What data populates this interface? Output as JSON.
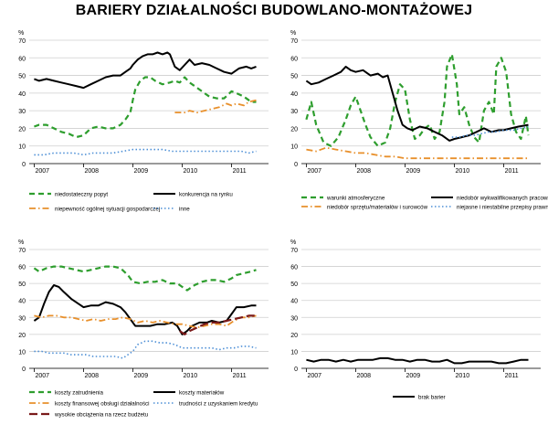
{
  "title": "BARIERY DZIAŁALNOŚCI BUDOWLANO-MONTAŻOWEJ",
  "chart_data": [
    {
      "type": "line",
      "unit": "%",
      "ylim": [
        0,
        70
      ],
      "yticks": [
        0,
        10,
        20,
        30,
        40,
        50,
        60,
        70
      ],
      "xlim": [
        2006.9,
        2011.75
      ],
      "year_labels": [
        "2007",
        "2008",
        "2009",
        "2010",
        "2011"
      ],
      "grid": true,
      "series": [
        {
          "name": "niedostateczny popyt",
          "color": "#2e9e2e",
          "style": "dashed",
          "x": [
            2007.0,
            2007.1,
            2007.25,
            2007.4,
            2007.55,
            2007.7,
            2007.85,
            2008.0,
            2008.15,
            2008.3,
            2008.45,
            2008.6,
            2008.75,
            2008.85,
            2008.95,
            2009.0,
            2009.05,
            2009.15,
            2009.25,
            2009.35,
            2009.45,
            2009.6,
            2009.75,
            2009.85,
            2009.95,
            2010.05,
            2010.15,
            2010.25,
            2010.4,
            2010.55,
            2010.7,
            2010.85,
            2011.0,
            2011.1,
            2011.25,
            2011.4,
            2011.5
          ],
          "y": [
            21,
            22,
            22,
            20,
            18,
            17,
            15,
            16,
            20,
            21,
            20,
            20,
            22,
            25,
            29,
            36,
            42,
            47,
            49,
            49,
            47,
            45,
            46,
            47,
            46,
            49,
            46,
            44,
            41,
            38,
            37,
            37,
            41,
            40,
            38,
            35,
            35
          ]
        },
        {
          "name": "konkurencja na rynku",
          "color": "#000000",
          "style": "solid",
          "x": [
            2007.0,
            2007.1,
            2007.25,
            2007.4,
            2007.55,
            2007.7,
            2007.85,
            2008.0,
            2008.15,
            2008.3,
            2008.45,
            2008.6,
            2008.75,
            2008.85,
            2008.95,
            2009.0,
            2009.1,
            2009.2,
            2009.3,
            2009.4,
            2009.5,
            2009.6,
            2009.7,
            2009.75,
            2009.85,
            2009.95,
            2010.05,
            2010.15,
            2010.25,
            2010.4,
            2010.55,
            2010.7,
            2010.85,
            2011.0,
            2011.15,
            2011.3,
            2011.4,
            2011.5
          ],
          "y": [
            48,
            47,
            48,
            47,
            46,
            45,
            44,
            43,
            45,
            47,
            49,
            50,
            50,
            52,
            54,
            56,
            59,
            61,
            62,
            62,
            63,
            62,
            63,
            62,
            55,
            53,
            56,
            59,
            56,
            57,
            56,
            54,
            52,
            51,
            54,
            55,
            54,
            55
          ]
        },
        {
          "name": "niepewność ogólnej sytuacji gospodarczej",
          "color": "#e8902c",
          "style": "dashdot",
          "x": [
            2009.85,
            2009.95,
            2010.05,
            2010.15,
            2010.3,
            2010.45,
            2010.6,
            2010.75,
            2010.9,
            2011.0,
            2011.1,
            2011.25,
            2011.35,
            2011.5
          ],
          "y": [
            29,
            29,
            29,
            30,
            29,
            30,
            31,
            32,
            34,
            33,
            34,
            33,
            35,
            36
          ]
        },
        {
          "name": "inne",
          "color": "#4d8fd6",
          "style": "dotted",
          "x": [
            2007.0,
            2007.2,
            2007.4,
            2007.6,
            2007.8,
            2008.0,
            2008.2,
            2008.4,
            2008.6,
            2008.8,
            2009.0,
            2009.2,
            2009.4,
            2009.6,
            2009.8,
            2010.0,
            2010.2,
            2010.4,
            2010.6,
            2010.8,
            2011.0,
            2011.2,
            2011.35,
            2011.5
          ],
          "y": [
            5,
            5,
            6,
            6,
            6,
            5,
            6,
            6,
            6,
            7,
            8,
            8,
            8,
            8,
            7,
            7,
            7,
            7,
            7,
            7,
            7,
            7,
            6,
            7
          ]
        }
      ]
    },
    {
      "type": "line",
      "unit": "%",
      "ylim": [
        0,
        70
      ],
      "yticks": [
        0,
        10,
        20,
        30,
        40,
        50,
        60,
        70
      ],
      "xlim": [
        2006.9,
        2011.75
      ],
      "year_labels": [
        "2007",
        "2008",
        "2009",
        "2010",
        "2011"
      ],
      "grid": true,
      "series": [
        {
          "name": "warunki atmosferyczne",
          "color": "#2e9e2e",
          "style": "dashed",
          "x": [
            2007.0,
            2007.1,
            2007.2,
            2007.35,
            2007.5,
            2007.65,
            2007.8,
            2007.9,
            2008.0,
            2008.1,
            2008.2,
            2008.3,
            2008.45,
            2008.6,
            2008.7,
            2008.8,
            2008.9,
            2009.0,
            2009.1,
            2009.2,
            2009.3,
            2009.4,
            2009.5,
            2009.6,
            2009.7,
            2009.8,
            2009.85,
            2009.95,
            2010.05,
            2010.1,
            2010.2,
            2010.3,
            2010.4,
            2010.5,
            2010.6,
            2010.7,
            2010.8,
            2010.85,
            2010.95,
            2011.05,
            2011.15,
            2011.25,
            2011.35,
            2011.45,
            2011.5
          ],
          "y": [
            25,
            35,
            22,
            12,
            10,
            15,
            25,
            33,
            38,
            30,
            22,
            15,
            10,
            12,
            20,
            35,
            45,
            42,
            25,
            14,
            16,
            20,
            22,
            14,
            18,
            35,
            55,
            62,
            45,
            28,
            32,
            22,
            15,
            12,
            30,
            35,
            28,
            55,
            60,
            52,
            28,
            18,
            14,
            27,
            16
          ]
        },
        {
          "name": "niedobór wykwalifikowanych pracowników",
          "color": "#000000",
          "style": "solid",
          "x": [
            2007.0,
            2007.1,
            2007.25,
            2007.4,
            2007.55,
            2007.7,
            2007.8,
            2007.9,
            2008.0,
            2008.15,
            2008.3,
            2008.45,
            2008.55,
            2008.65,
            2008.75,
            2008.85,
            2008.95,
            2009.05,
            2009.15,
            2009.3,
            2009.45,
            2009.6,
            2009.75,
            2009.9,
            2010.0,
            2010.15,
            2010.3,
            2010.45,
            2010.6,
            2010.75,
            2010.9,
            2011.0,
            2011.15,
            2011.3,
            2011.5
          ],
          "y": [
            47,
            45,
            46,
            48,
            50,
            52,
            55,
            53,
            52,
            53,
            50,
            51,
            49,
            50,
            40,
            30,
            22,
            20,
            19,
            21,
            20,
            18,
            16,
            13,
            14,
            15,
            16,
            18,
            20,
            18,
            19,
            19,
            20,
            21,
            22
          ]
        },
        {
          "name": "niedobór sprzętu/materiałów i surowców",
          "color": "#e8902c",
          "style": "dashdot",
          "x": [
            2007.0,
            2007.2,
            2007.4,
            2007.6,
            2007.8,
            2008.0,
            2008.2,
            2008.4,
            2008.6,
            2008.8,
            2009.0,
            2009.3,
            2009.6,
            2009.9,
            2010.2,
            2010.5,
            2010.8,
            2011.1,
            2011.5
          ],
          "y": [
            8,
            7,
            9,
            8,
            7,
            6,
            6,
            5,
            4,
            4,
            3,
            3,
            3,
            3,
            3,
            3,
            3,
            3,
            3
          ]
        },
        {
          "name": "niejasne i niestabilne przepisy prawne",
          "color": "#4d8fd6",
          "style": "dotted",
          "x": [
            2009.95,
            2010.1,
            2010.25,
            2010.4,
            2010.55,
            2010.7,
            2010.85,
            2011.0,
            2011.2,
            2011.35,
            2011.5
          ],
          "y": [
            15,
            15,
            16,
            16,
            17,
            18,
            18,
            19,
            19,
            20,
            21
          ]
        }
      ]
    },
    {
      "type": "line",
      "unit": "%",
      "ylim": [
        0,
        70
      ],
      "yticks": [
        0,
        10,
        20,
        30,
        40,
        50,
        60,
        70
      ],
      "xlim": [
        2006.9,
        2011.75
      ],
      "year_labels": [
        "2007",
        "2008",
        "2009",
        "2010",
        "2011"
      ],
      "grid": true,
      "series": [
        {
          "name": "koszty zatrudnienia",
          "color": "#2e9e2e",
          "style": "dashed",
          "x": [
            2007.0,
            2007.1,
            2007.25,
            2007.4,
            2007.55,
            2007.7,
            2007.85,
            2008.0,
            2008.15,
            2008.3,
            2008.45,
            2008.6,
            2008.75,
            2008.9,
            2009.0,
            2009.15,
            2009.3,
            2009.45,
            2009.6,
            2009.75,
            2009.9,
            2010.0,
            2010.1,
            2010.25,
            2010.4,
            2010.55,
            2010.7,
            2010.85,
            2011.0,
            2011.1,
            2011.25,
            2011.4,
            2011.5
          ],
          "y": [
            59,
            57,
            59,
            60,
            60,
            59,
            58,
            57,
            58,
            59,
            60,
            60,
            59,
            55,
            51,
            50,
            51,
            51,
            52,
            50,
            50,
            48,
            46,
            49,
            51,
            52,
            52,
            51,
            53,
            55,
            56,
            57,
            58
          ]
        },
        {
          "name": "koszty materiałów",
          "color": "#000000",
          "style": "solid",
          "x": [
            2007.0,
            2007.1,
            2007.2,
            2007.3,
            2007.4,
            2007.5,
            2007.6,
            2007.75,
            2007.9,
            2008.0,
            2008.15,
            2008.3,
            2008.45,
            2008.6,
            2008.75,
            2008.85,
            2008.95,
            2009.05,
            2009.2,
            2009.35,
            2009.5,
            2009.65,
            2009.8,
            2009.9,
            2010.0,
            2010.1,
            2010.2,
            2010.35,
            2010.5,
            2010.6,
            2010.75,
            2010.9,
            2011.0,
            2011.1,
            2011.25,
            2011.4,
            2011.5
          ],
          "y": [
            28,
            30,
            38,
            45,
            49,
            48,
            45,
            41,
            38,
            36,
            37,
            37,
            39,
            38,
            36,
            33,
            29,
            25,
            25,
            25,
            26,
            26,
            27,
            25,
            20,
            22,
            25,
            27,
            27,
            28,
            27,
            28,
            32,
            36,
            36,
            37,
            37
          ]
        },
        {
          "name": "koszty finansowej obsługi działalności",
          "color": "#e8902c",
          "style": "dashdot",
          "x": [
            2007.0,
            2007.15,
            2007.3,
            2007.45,
            2007.6,
            2007.75,
            2007.9,
            2008.05,
            2008.2,
            2008.35,
            2008.5,
            2008.65,
            2008.8,
            2008.95,
            2009.1,
            2009.25,
            2009.4,
            2009.55,
            2009.7,
            2009.85,
            2010.0,
            2010.15,
            2010.3,
            2010.45,
            2010.6,
            2010.75,
            2010.9,
            2011.05,
            2011.2,
            2011.35,
            2011.5
          ],
          "y": [
            31,
            30,
            31,
            31,
            30,
            30,
            29,
            28,
            29,
            28,
            29,
            29,
            30,
            29,
            27,
            28,
            27,
            28,
            27,
            26,
            26,
            25,
            24,
            25,
            26,
            26,
            25,
            28,
            30,
            30,
            31
          ]
        },
        {
          "name": "trudności z uzyskaniem kredytu",
          "color": "#4d8fd6",
          "style": "dotted",
          "x": [
            2007.0,
            2007.15,
            2007.3,
            2007.45,
            2007.6,
            2007.75,
            2007.9,
            2008.05,
            2008.2,
            2008.35,
            2008.5,
            2008.65,
            2008.8,
            2008.9,
            2009.0,
            2009.1,
            2009.25,
            2009.4,
            2009.55,
            2009.7,
            2009.85,
            2010.0,
            2010.15,
            2010.3,
            2010.45,
            2010.6,
            2010.75,
            2010.9,
            2011.05,
            2011.2,
            2011.35,
            2011.5
          ],
          "y": [
            10,
            10,
            9,
            9,
            9,
            8,
            8,
            8,
            7,
            7,
            7,
            7,
            6,
            8,
            10,
            14,
            16,
            16,
            15,
            15,
            14,
            12,
            12,
            12,
            12,
            12,
            11,
            12,
            12,
            13,
            13,
            12
          ]
        },
        {
          "name": "wysokie obciążenia na rzecz budżetu",
          "color": "#7a1a1a",
          "style": "longdash",
          "x": [
            2009.95,
            2010.05,
            2010.15,
            2010.3,
            2010.45,
            2010.6,
            2010.75,
            2010.9,
            2011.05,
            2011.2,
            2011.35,
            2011.5
          ],
          "y": [
            22,
            20,
            22,
            24,
            26,
            27,
            27,
            28,
            29,
            30,
            31,
            31
          ]
        }
      ]
    },
    {
      "type": "line",
      "unit": "%",
      "ylim": [
        0,
        70
      ],
      "yticks": [
        0,
        10,
        20,
        30,
        40,
        50,
        60,
        70
      ],
      "xlim": [
        2006.9,
        2011.75
      ],
      "year_labels": [
        "2007",
        "2008",
        "2009",
        "2010",
        "2011"
      ],
      "grid": true,
      "series": [
        {
          "name": "brak barier",
          "color": "#000000",
          "style": "solid",
          "x": [
            2007.0,
            2007.15,
            2007.3,
            2007.45,
            2007.6,
            2007.75,
            2007.9,
            2008.05,
            2008.2,
            2008.35,
            2008.5,
            2008.65,
            2008.8,
            2008.95,
            2009.1,
            2009.25,
            2009.4,
            2009.55,
            2009.7,
            2009.85,
            2010.0,
            2010.15,
            2010.3,
            2010.45,
            2010.6,
            2010.75,
            2010.9,
            2011.05,
            2011.2,
            2011.35,
            2011.5
          ],
          "y": [
            5,
            4,
            5,
            5,
            4,
            5,
            4,
            5,
            5,
            5,
            6,
            6,
            5,
            5,
            4,
            5,
            5,
            4,
            4,
            5,
            3,
            3,
            4,
            4,
            4,
            4,
            3,
            3,
            4,
            5,
            5
          ]
        }
      ]
    }
  ]
}
